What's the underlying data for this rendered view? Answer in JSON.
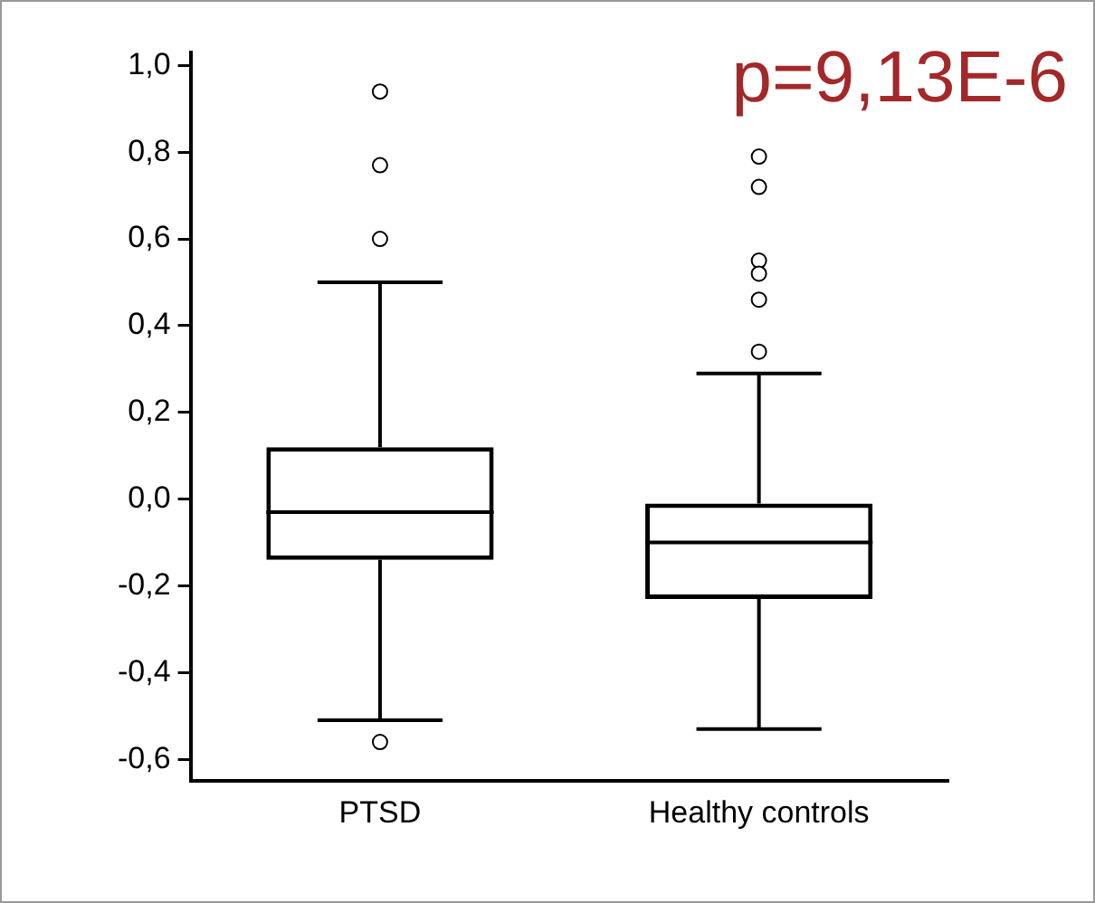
{
  "chart_data": {
    "type": "box",
    "categories": [
      "PTSD",
      "Healthy controls"
    ],
    "boxes": [
      {
        "low": -0.51,
        "q1": -0.14,
        "median": -0.03,
        "q3": 0.12,
        "high": 0.5,
        "outliers": [
          0.94,
          0.77,
          0.6,
          -0.56
        ]
      },
      {
        "low": -0.53,
        "q1": -0.23,
        "median": -0.1,
        "q3": -0.01,
        "high": 0.29,
        "outliers": [
          0.79,
          0.72,
          0.55,
          0.52,
          0.46,
          0.34
        ]
      }
    ],
    "ylim": [
      -0.65,
      1.03
    ],
    "yticks": [
      {
        "value": -0.6,
        "label": "-0,6"
      },
      {
        "value": -0.4,
        "label": "-0,4"
      },
      {
        "value": -0.2,
        "label": "-0,2"
      },
      {
        "value": 0,
        "label": "0,0"
      },
      {
        "value": 0.2,
        "label": "0,2"
      },
      {
        "value": 0.4,
        "label": "0,4"
      },
      {
        "value": 0.6,
        "label": "0,6"
      },
      {
        "value": 0.8,
        "label": "0,8"
      },
      {
        "value": 1,
        "label": "1,0"
      }
    ],
    "grid": false,
    "legend": false,
    "annotations": [
      "p=9,13E-6"
    ]
  }
}
